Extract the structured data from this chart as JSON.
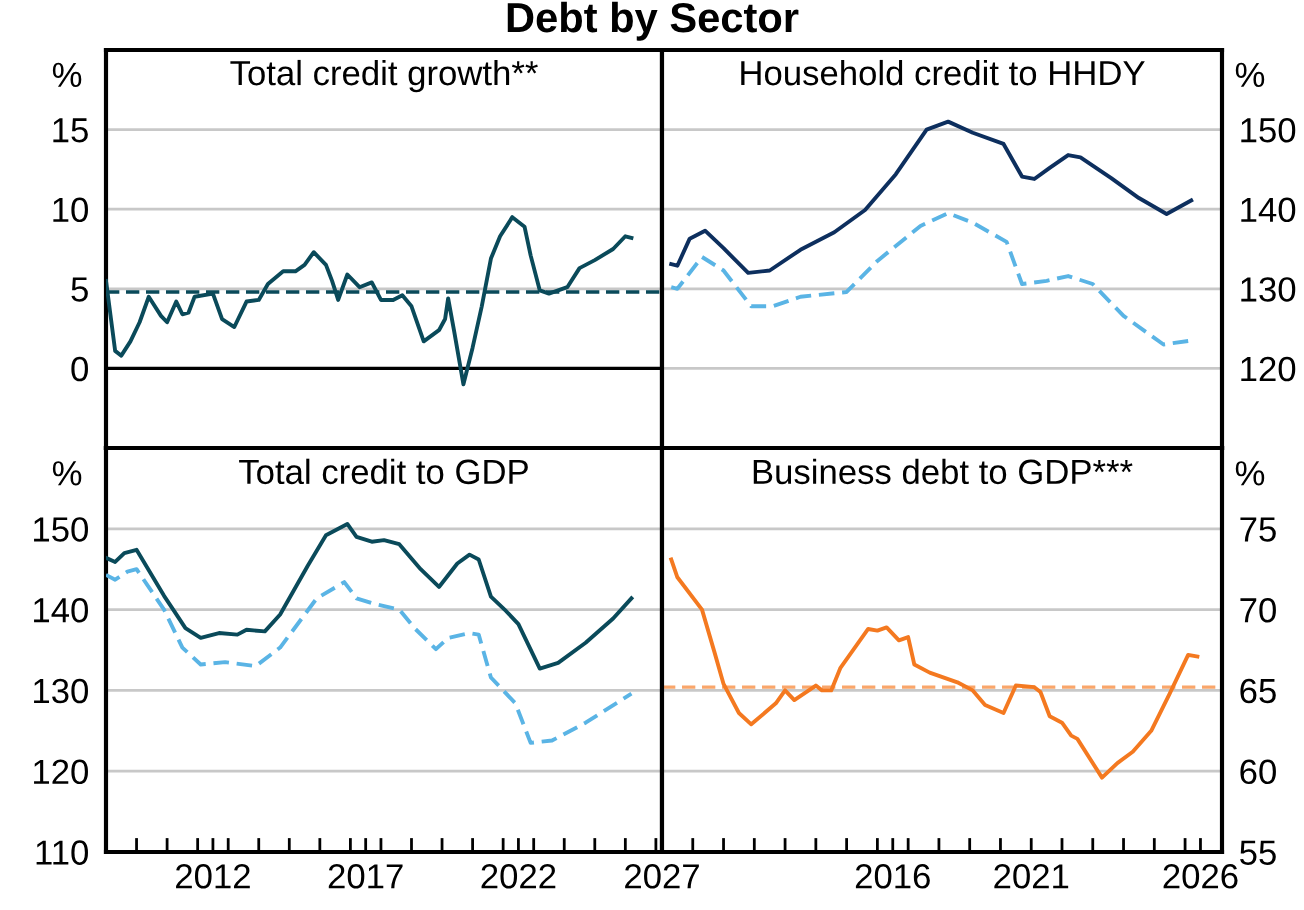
{
  "chart_data": [
    {
      "type": "line",
      "title": "Total credit growth**",
      "ylabel": "%",
      "annotations": [
        "Debt by Sector"
      ],
      "xlim": [
        2009,
        2027.2
      ],
      "ylim": [
        -5,
        20
      ],
      "yticks": [
        0,
        5,
        10,
        15
      ],
      "grid": "y",
      "tick_labels": "y",
      "ref_lines": [
        {
          "axis": "y",
          "value": 0,
          "color": "#000000",
          "line_style": "solid"
        },
        {
          "axis": "y",
          "value": 4.8,
          "color": "#0a4a5a",
          "line_style": "dashed"
        }
      ],
      "series": [
        {
          "color": "#0a4a5a",
          "line_style": "solid",
          "x": [
            2009.0,
            2009.3,
            2009.5,
            2009.8,
            2010.1,
            2010.4,
            2010.8,
            2011.0,
            2011.3,
            2011.5,
            2011.7,
            2011.9,
            2012.5,
            2012.8,
            2013.2,
            2013.6,
            2014.0,
            2014.3,
            2014.8,
            2015.2,
            2015.5,
            2015.8,
            2016.2,
            2016.4,
            2016.6,
            2016.9,
            2017.3,
            2017.7,
            2018.0,
            2018.4,
            2018.7,
            2019.0,
            2019.4,
            2019.9,
            2020.1,
            2020.2,
            2020.4,
            2020.7,
            2021.0,
            2021.3,
            2021.6,
            2021.9,
            2022.3,
            2022.7,
            2022.9,
            2023.2,
            2023.5,
            2024.1,
            2024.5,
            2025.0,
            2025.6,
            2026.0,
            2026.2
          ],
          "values": [
            5.5,
            1.1,
            0.8,
            1.7,
            2.9,
            4.5,
            3.3,
            2.9,
            4.2,
            3.4,
            3.5,
            4.5,
            4.7,
            3.1,
            2.6,
            4.2,
            4.3,
            5.3,
            6.1,
            6.1,
            6.5,
            7.3,
            6.5,
            5.5,
            4.3,
            5.9,
            5.1,
            5.4,
            4.3,
            4.3,
            4.6,
            3.9,
            1.7,
            2.4,
            3.1,
            4.4,
            2.3,
            -1.0,
            1.3,
            3.9,
            6.9,
            8.3,
            9.5,
            8.9,
            7.1,
            4.9,
            4.7,
            5.1,
            6.3,
            6.8,
            7.5,
            8.3,
            8.2
          ]
        }
      ]
    },
    {
      "type": "line",
      "title": "Household credit to HHDY",
      "y2label": "%",
      "xlim": [
        2009,
        2027.2
      ],
      "y2lim": [
        110,
        160
      ],
      "y2ticks": [
        120,
        130,
        140,
        150
      ],
      "grid": "y",
      "tick_labels": "y",
      "series": [
        {
          "color": "#0d2f5e",
          "line_style": "solid",
          "axis": "y2",
          "x": [
            2009.3,
            2009.5,
            2009.9,
            2010.4,
            2011.0,
            2011.8,
            2012.5,
            2013.5,
            2014.6,
            2015.6,
            2016.6,
            2017.6,
            2018.3,
            2019.1,
            2020.1,
            2020.7,
            2021.1,
            2021.6,
            2022.2,
            2022.6,
            2023.6,
            2024.5,
            2025.4,
            2026.2
          ],
          "values": [
            133.1,
            132.9,
            136.3,
            137.3,
            135.1,
            132.0,
            132.3,
            134.9,
            137.1,
            139.9,
            144.4,
            150.0,
            151.0,
            149.6,
            148.2,
            144.1,
            143.8,
            145.2,
            146.8,
            146.5,
            143.9,
            141.4,
            139.4,
            141.1
          ]
        },
        {
          "color": "#5ab4e5",
          "line_style": "dashed",
          "axis": "y2",
          "x": [
            2009.3,
            2009.5,
            2010.3,
            2011.0,
            2011.9,
            2012.6,
            2013.5,
            2015.0,
            2016.0,
            2017.4,
            2018.3,
            2019.1,
            2020.2,
            2020.7,
            2021.5,
            2022.2,
            2023.0,
            2024.0,
            2025.3,
            2026.2
          ],
          "values": [
            130.2,
            130.0,
            134.0,
            132.3,
            127.8,
            127.8,
            129.0,
            129.6,
            133.5,
            137.9,
            139.5,
            138.3,
            135.9,
            130.6,
            131.0,
            131.6,
            130.6,
            126.6,
            123.0,
            123.5
          ]
        }
      ]
    },
    {
      "type": "line",
      "title": "Total credit to GDP",
      "ylabel": "%",
      "xlim": [
        2009,
        2027.2
      ],
      "ylim": [
        110,
        160
      ],
      "yticks": [
        110,
        120,
        130,
        140,
        150
      ],
      "grid": "y",
      "xticks": [
        {
          "value": 2010,
          "label": null
        },
        {
          "value": 2011,
          "label": null
        },
        {
          "value": 2012,
          "label": null
        },
        {
          "value": 2012.5,
          "label": "2012"
        },
        {
          "value": 2013,
          "label": null
        },
        {
          "value": 2014,
          "label": null
        },
        {
          "value": 2015,
          "label": null
        },
        {
          "value": 2016,
          "label": null
        },
        {
          "value": 2017,
          "label": null
        },
        {
          "value": 2017.5,
          "label": "2017"
        },
        {
          "value": 2018,
          "label": null
        },
        {
          "value": 2019,
          "label": null
        },
        {
          "value": 2020,
          "label": null
        },
        {
          "value": 2021,
          "label": null
        },
        {
          "value": 2022,
          "label": null
        },
        {
          "value": 2022.5,
          "label": "2022"
        },
        {
          "value": 2023,
          "label": null
        },
        {
          "value": 2024,
          "label": null
        },
        {
          "value": 2025,
          "label": null
        },
        {
          "value": 2026,
          "label": null
        },
        {
          "value": 2027,
          "label": null
        },
        {
          "value": 2027.2,
          "label": "2027"
        }
      ],
      "series": [
        {
          "color": "#0a4a5a",
          "line_style": "solid",
          "x": [
            2009.0,
            2009.3,
            2009.6,
            2010.0,
            2010.9,
            2011.2,
            2011.6,
            2012.1,
            2012.7,
            2013.3,
            2013.6,
            2014.2,
            2014.7,
            2015.6,
            2016.2,
            2016.9,
            2017.2,
            2017.7,
            2018.1,
            2018.6,
            2019.3,
            2019.9,
            2020.5,
            2020.9,
            2021.2,
            2021.6,
            2022.1,
            2022.5,
            2023.2,
            2023.8,
            2024.7,
            2025.6,
            2026.2
          ],
          "values": [
            146.4,
            145.9,
            147.0,
            147.4,
            141.7,
            140.0,
            137.7,
            136.5,
            137.1,
            136.9,
            137.5,
            137.3,
            139.4,
            145.4,
            149.2,
            150.6,
            149.0,
            148.4,
            148.6,
            148.1,
            145.0,
            142.8,
            145.7,
            146.8,
            146.2,
            141.6,
            139.8,
            138.2,
            132.7,
            133.4,
            135.9,
            138.9,
            141.4
          ]
        },
        {
          "color": "#5ab4e5",
          "line_style": "dashed",
          "x": [
            2009.0,
            2009.3,
            2009.7,
            2010.0,
            2010.9,
            2011.5,
            2012.1,
            2012.9,
            2013.9,
            2014.7,
            2015.9,
            2016.8,
            2017.2,
            2017.7,
            2018.6,
            2019.1,
            2019.8,
            2020.2,
            2020.9,
            2021.2,
            2021.6,
            2022.4,
            2022.9,
            2023.6,
            2024.7,
            2026.2
          ],
          "values": [
            144.3,
            143.7,
            144.7,
            145.0,
            140.0,
            135.3,
            133.2,
            133.5,
            133.0,
            135.3,
            141.4,
            143.4,
            141.4,
            140.8,
            140.0,
            137.7,
            135.1,
            136.5,
            137.1,
            136.9,
            131.6,
            128.4,
            123.5,
            123.8,
            126.0,
            129.6
          ]
        }
      ]
    },
    {
      "type": "line",
      "title": "Business debt to GDP***",
      "y2label": "%",
      "xlim": [
        2009,
        2027.2
      ],
      "y2lim": [
        55,
        80
      ],
      "y2ticks": [
        55,
        60,
        65,
        70,
        75
      ],
      "grid": "y",
      "xticks": [
        {
          "value": 2010,
          "label": null
        },
        {
          "value": 2011,
          "label": null
        },
        {
          "value": 2012,
          "label": null
        },
        {
          "value": 2013,
          "label": null
        },
        {
          "value": 2014,
          "label": null
        },
        {
          "value": 2015,
          "label": null
        },
        {
          "value": 2016,
          "label": null
        },
        {
          "value": 2016.5,
          "label": "2016"
        },
        {
          "value": 2017,
          "label": null
        },
        {
          "value": 2018,
          "label": null
        },
        {
          "value": 2019,
          "label": null
        },
        {
          "value": 2020,
          "label": null
        },
        {
          "value": 2021,
          "label": "2021"
        },
        {
          "value": 2022,
          "label": null
        },
        {
          "value": 2023,
          "label": null
        },
        {
          "value": 2024,
          "label": null
        },
        {
          "value": 2025,
          "label": null
        },
        {
          "value": 2026,
          "label": null
        },
        {
          "value": 2026.5,
          "label": "2026"
        }
      ],
      "ref_lines": [
        {
          "axis": "y2",
          "value": 65.2,
          "color": "#f9a66b",
          "line_style": "dashed"
        }
      ],
      "series": [
        {
          "color": "#f47920",
          "line_style": "solid",
          "axis": "y2",
          "x": [
            2009.3,
            2009.5,
            2010.3,
            2010.7,
            2011.0,
            2011.5,
            2011.9,
            2012.7,
            2013.0,
            2013.3,
            2014.0,
            2014.2,
            2014.5,
            2014.8,
            2015.7,
            2016.0,
            2016.3,
            2016.7,
            2017.0,
            2017.2,
            2017.7,
            2018.6,
            2019.1,
            2019.5,
            2020.1,
            2020.5,
            2021.1,
            2021.3,
            2021.6,
            2022.0,
            2022.3,
            2022.5,
            2023.3,
            2023.8,
            2024.3,
            2024.9,
            2025.5,
            2026.1,
            2026.4
          ],
          "values": [
            73.1,
            72.0,
            70.0,
            67.4,
            65.4,
            63.6,
            62.9,
            64.2,
            65.0,
            64.4,
            65.3,
            65.0,
            65.0,
            66.4,
            68.8,
            68.7,
            68.9,
            68.1,
            68.3,
            66.6,
            66.1,
            65.5,
            65.0,
            64.1,
            63.6,
            65.3,
            65.2,
            64.9,
            63.4,
            63.0,
            62.2,
            62.0,
            59.6,
            60.5,
            61.2,
            62.5,
            64.8,
            67.2,
            67.1
          ]
        }
      ]
    }
  ]
}
